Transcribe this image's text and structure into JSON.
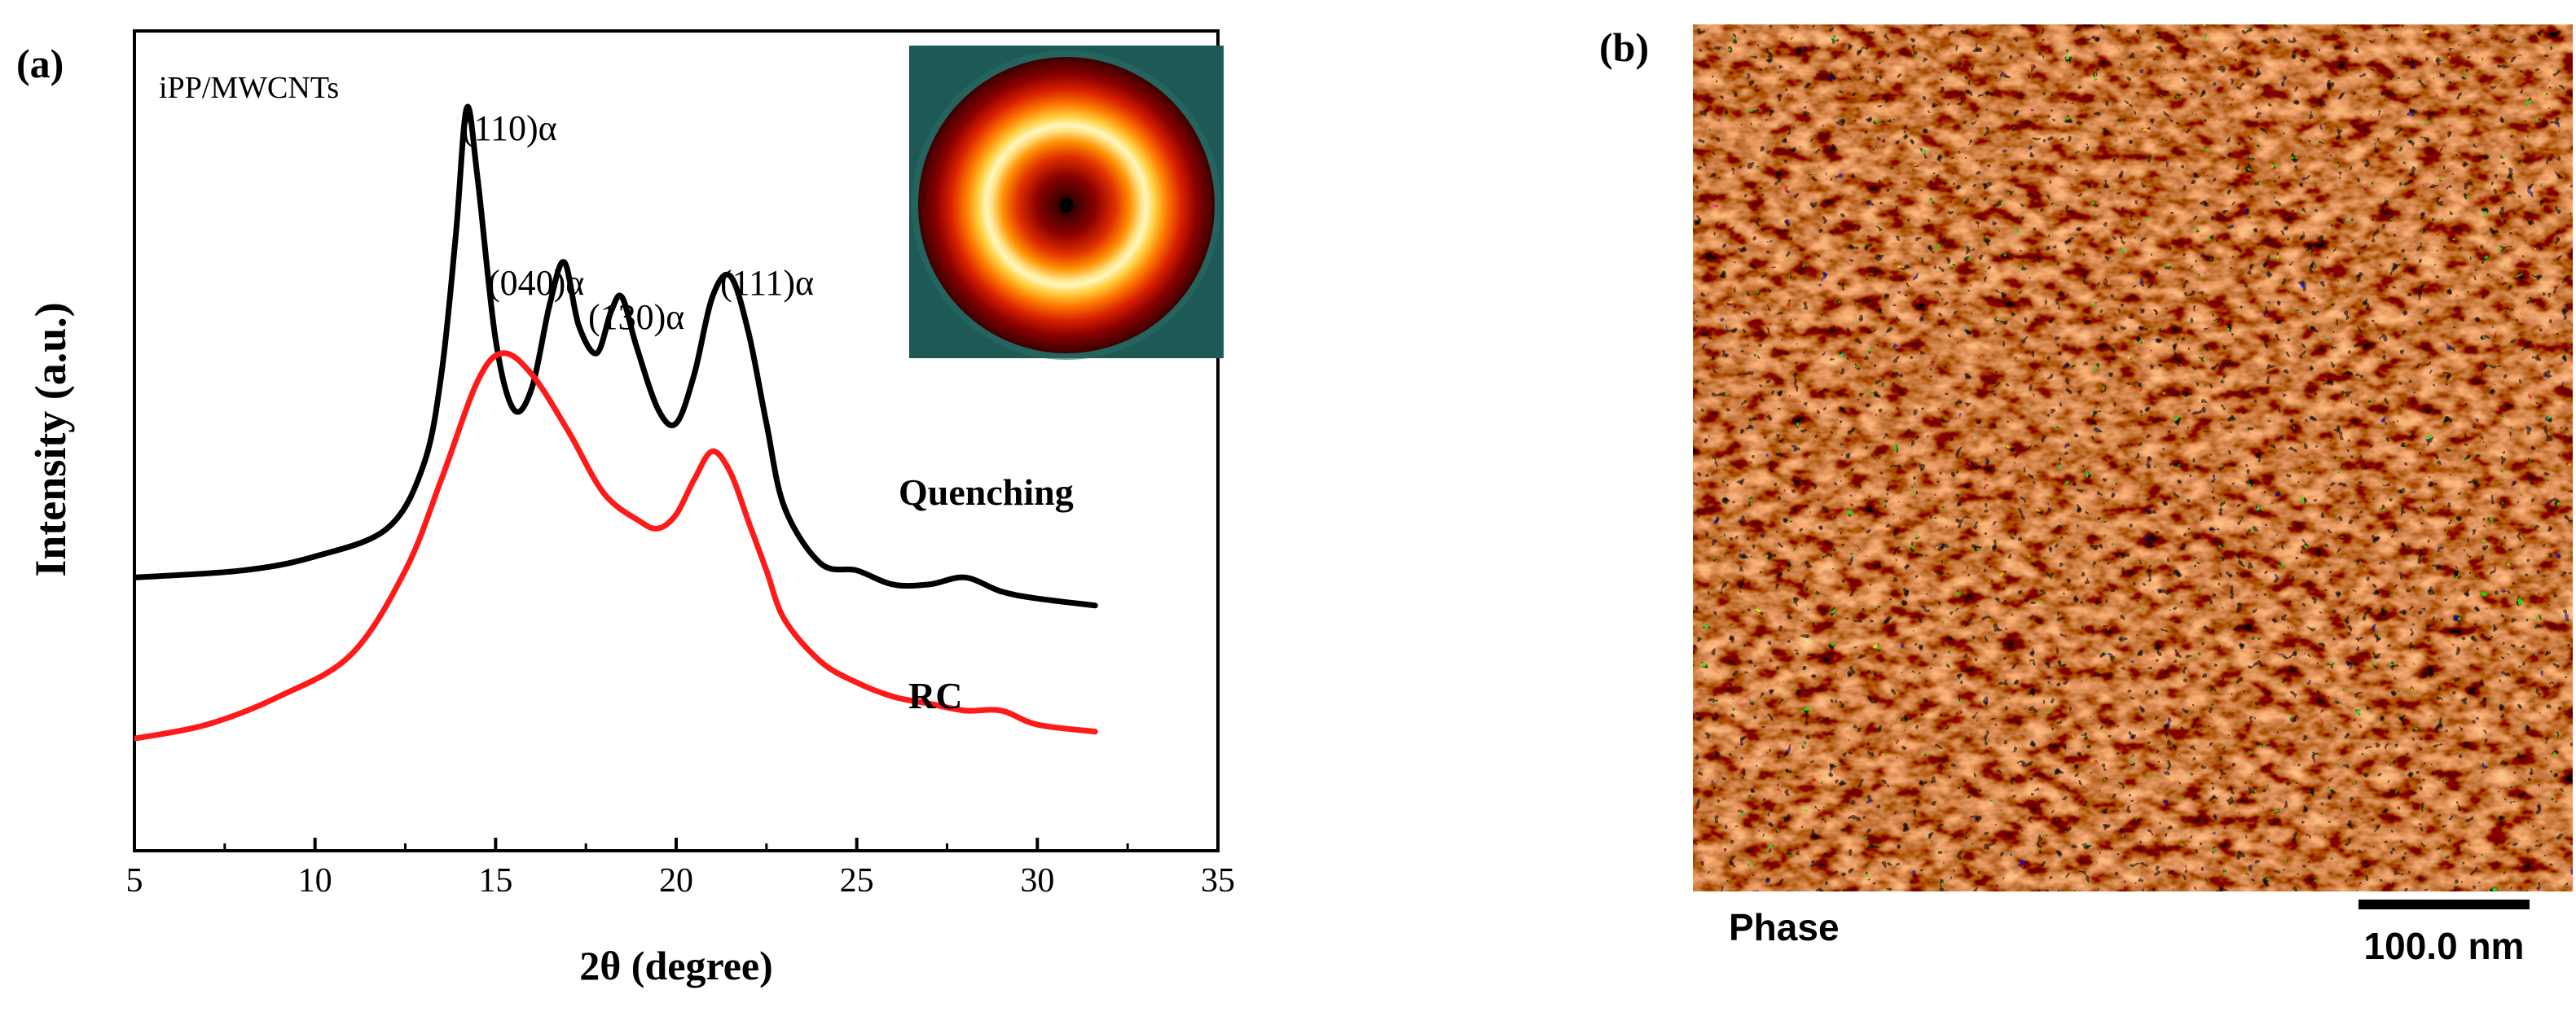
{
  "panels": {
    "a": {
      "label": "(a)"
    },
    "b": {
      "label": "(b)",
      "phase_label": "Phase",
      "scale_label": "100.0 nm"
    }
  },
  "chart_data": [
    {
      "type": "line",
      "title": "",
      "xlabel": "2θ (degree)",
      "ylabel": "Intensity (a.u.)",
      "xlim": [
        5,
        35
      ],
      "ylim": [
        0,
        1.17
      ],
      "xticks": [
        5,
        10,
        15,
        20,
        25,
        30,
        35
      ],
      "y_ticks_labeled": false,
      "grid": false,
      "legend": "none",
      "annotations": {
        "sample": "iPP/MWCNTs",
        "peaks": [
          {
            "text": "(110)α",
            "x": 14.2,
            "y": 1.07
          },
          {
            "text": "(040)α",
            "x": 16.9,
            "y": 0.84
          },
          {
            "text": "(130)α",
            "x": 18.5,
            "y": 0.8
          },
          {
            "text": "(111)α",
            "x": 21.5,
            "y": 0.84
          }
        ]
      },
      "inset": {
        "description": "2D diffraction pattern",
        "colors": [
          "#000000",
          "#3d0000",
          "#8b0000",
          "#e03000",
          "#ff9000",
          "#ffe080",
          "#fff7c0"
        ],
        "background": "#1e5a55"
      },
      "series": [
        {
          "name": "Quenching",
          "color": "#000000",
          "x": [
            5,
            8,
            10,
            12,
            13,
            13.5,
            13.9,
            14.2,
            14.5,
            15,
            15.5,
            16,
            16.5,
            16.9,
            17.3,
            17.8,
            18.2,
            18.5,
            18.9,
            19.5,
            20,
            20.5,
            21,
            21.5,
            22,
            22.5,
            23,
            24,
            25,
            26,
            27,
            28,
            29,
            30,
            31.6
          ],
          "y": [
            0.39,
            0.4,
            0.42,
            0.46,
            0.55,
            0.68,
            0.88,
            1.06,
            0.96,
            0.73,
            0.63,
            0.66,
            0.78,
            0.84,
            0.75,
            0.71,
            0.77,
            0.79,
            0.72,
            0.63,
            0.61,
            0.68,
            0.79,
            0.82,
            0.74,
            0.61,
            0.49,
            0.41,
            0.4,
            0.38,
            0.38,
            0.39,
            0.37,
            0.36,
            0.35
          ]
        },
        {
          "name": "RC",
          "color": "#ff1a1a",
          "x": [
            5,
            7,
            9,
            11,
            12.5,
            13.5,
            14.5,
            15.2,
            16,
            17,
            18,
            19,
            19.5,
            20,
            20.5,
            21,
            21.5,
            22,
            22.5,
            23,
            24,
            25,
            26,
            27,
            28,
            29,
            30,
            31.6
          ],
          "y": [
            0.16,
            0.18,
            0.22,
            0.28,
            0.4,
            0.53,
            0.67,
            0.71,
            0.68,
            0.6,
            0.51,
            0.47,
            0.46,
            0.48,
            0.53,
            0.57,
            0.54,
            0.47,
            0.4,
            0.33,
            0.27,
            0.24,
            0.22,
            0.21,
            0.2,
            0.2,
            0.18,
            0.17
          ]
        }
      ]
    }
  ]
}
